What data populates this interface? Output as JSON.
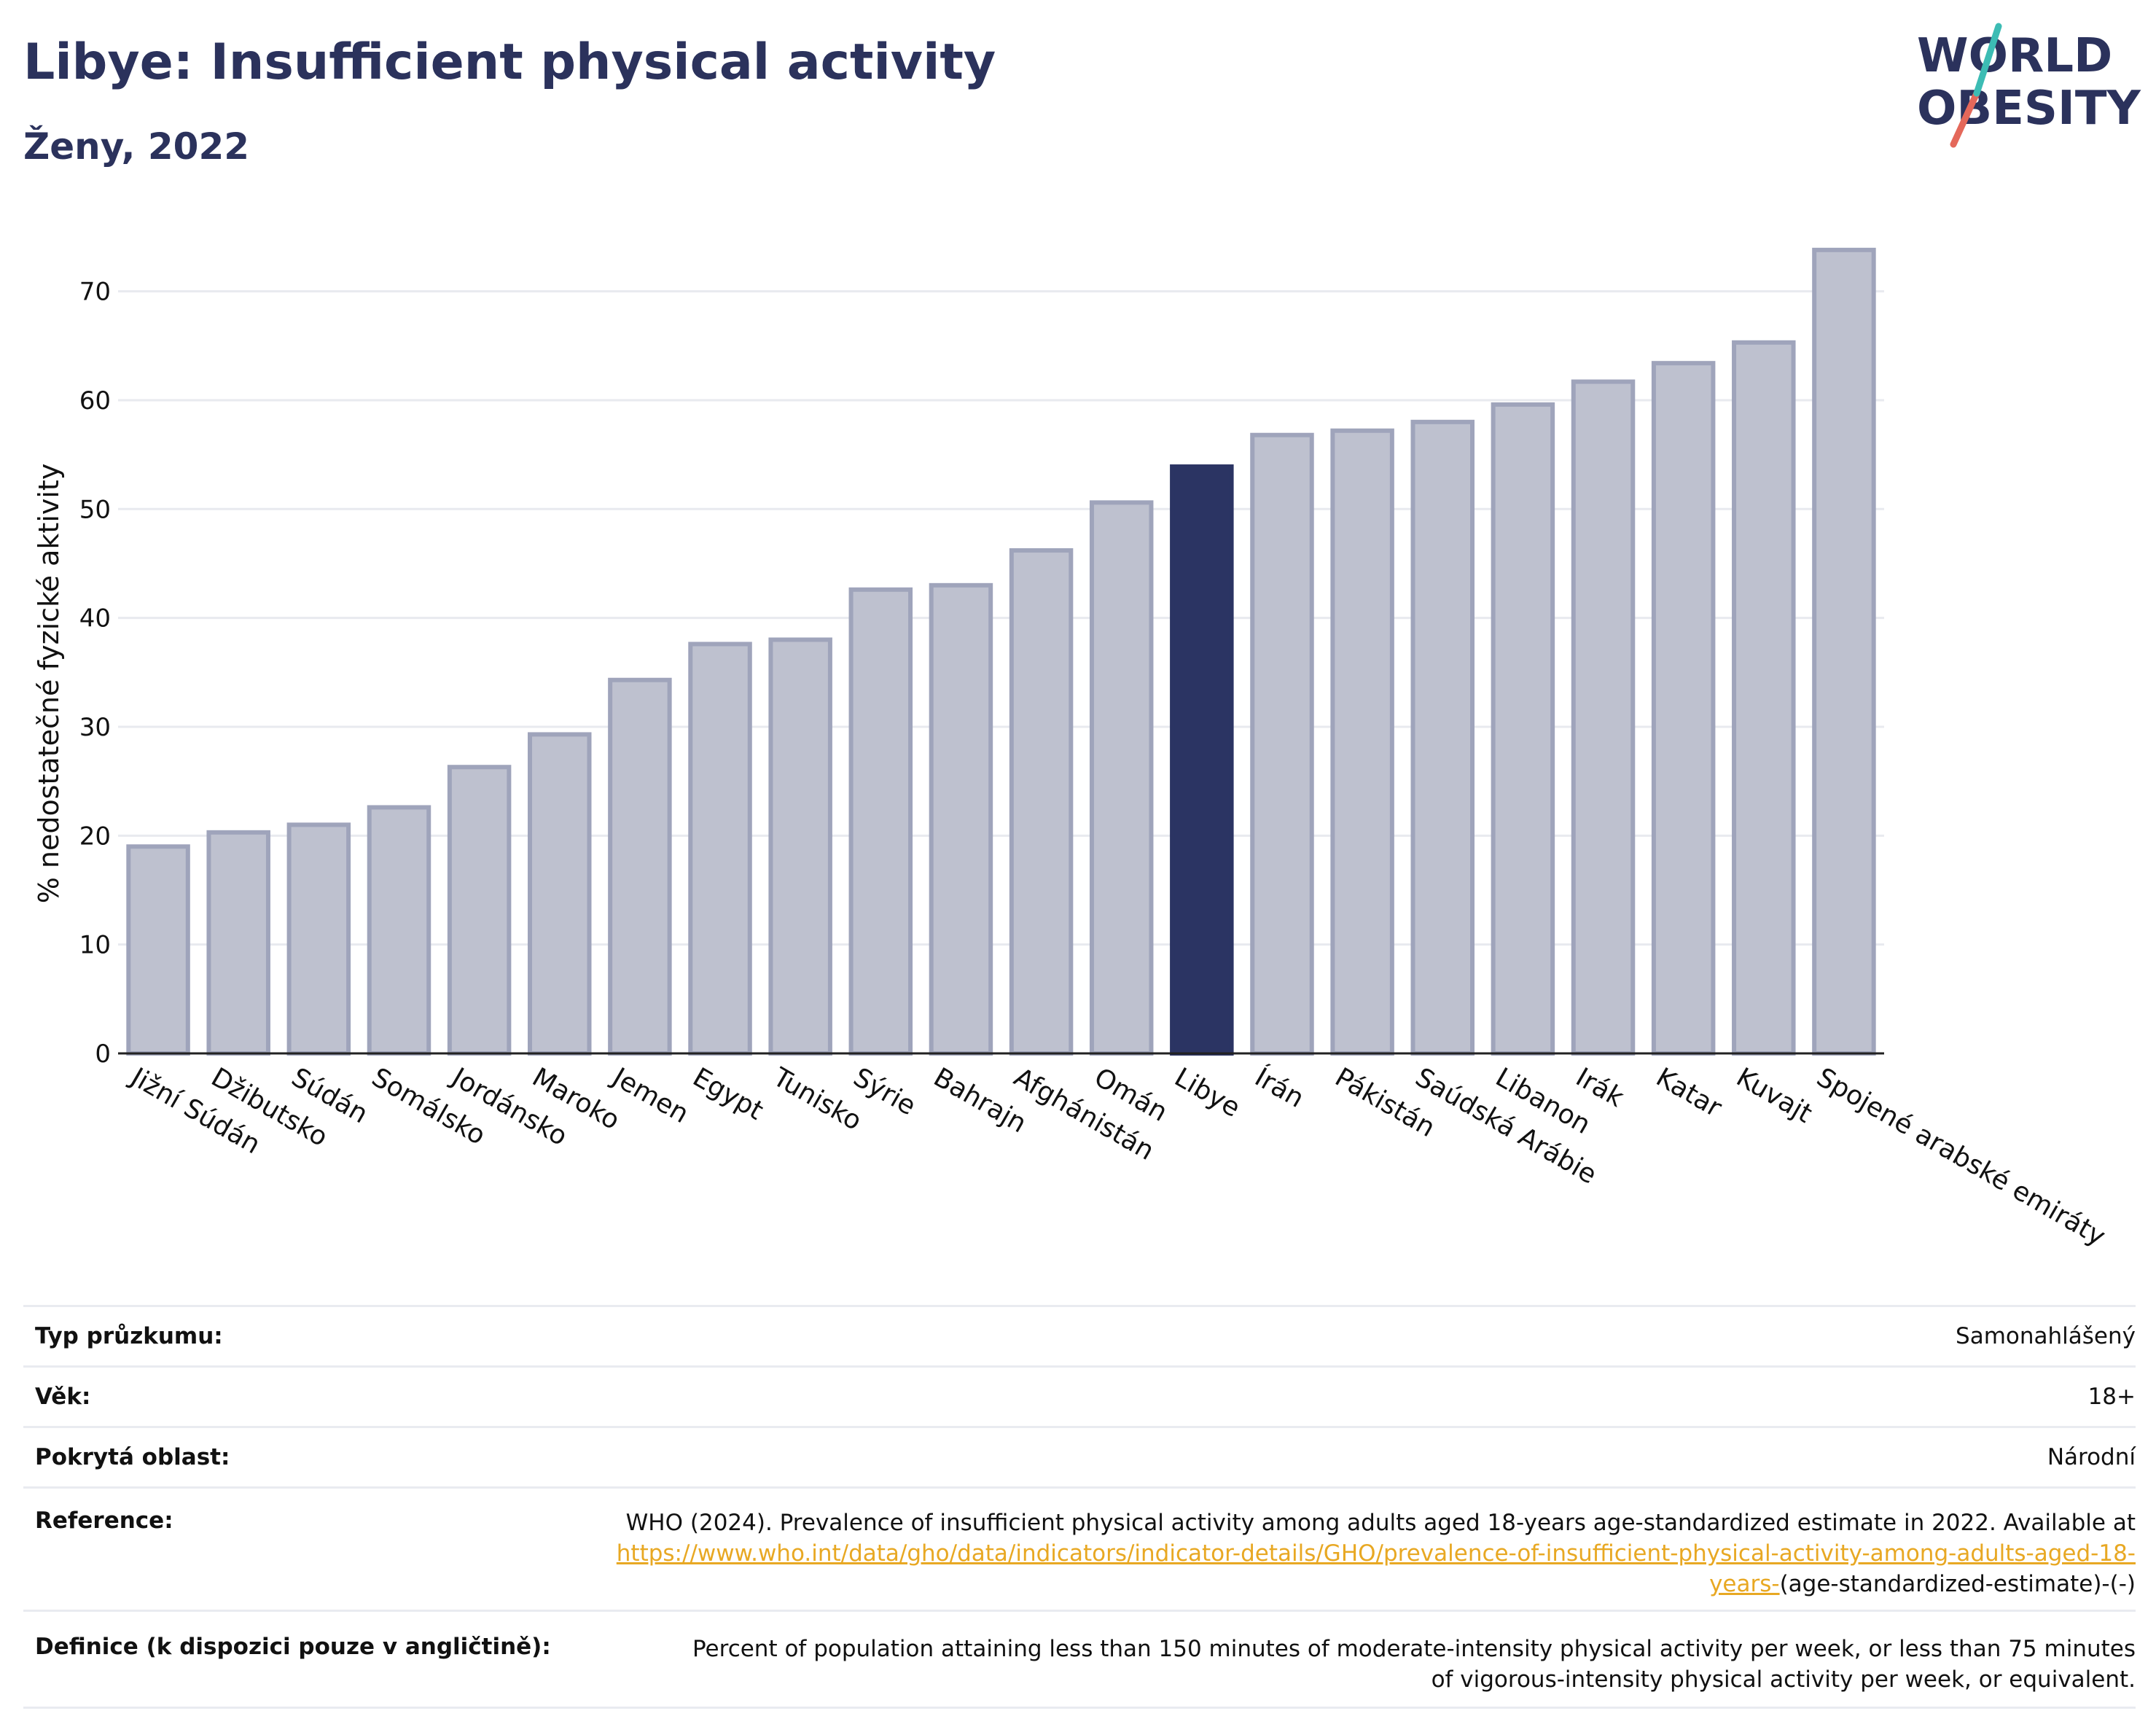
{
  "header": {
    "title": "Libye: Insufficient physical activity",
    "subtitle": "Ženy, 2022"
  },
  "logo": {
    "line1": "WORLD",
    "line2": "OBESITY"
  },
  "colors": {
    "highlight": "#2b3463",
    "bar_fill": "#bec1cf",
    "bar_stroke": "#9fa4bb",
    "grid": "#e8eaef",
    "link": "#e8a823"
  },
  "chart_data": {
    "type": "bar",
    "ylabel": "% nedostatečné fyzické aktivity",
    "ylim": [
      0,
      76
    ],
    "yticks": [
      0,
      10,
      20,
      30,
      40,
      50,
      60,
      70
    ],
    "grid": true,
    "highlight": "Libye",
    "categories": [
      "Jižní Súdán",
      "Džibutsko",
      "Súdán",
      "Somálsko",
      "Jordánsko",
      "Maroko",
      "Jemen",
      "Egypt",
      "Tunisko",
      "Sýrie",
      "Bahrajn",
      "Afghánistán",
      "Omán",
      "Libye",
      "Írán",
      "Pákistán",
      "Saúdská Arábie",
      "Libanon",
      "Irák",
      "Katar",
      "Kuvajt",
      "Spojené arabské emiráty"
    ],
    "values": [
      19.0,
      20.3,
      21.0,
      22.6,
      26.3,
      29.3,
      34.3,
      37.6,
      38.0,
      42.6,
      43.0,
      46.2,
      50.6,
      53.9,
      56.8,
      57.2,
      58.0,
      59.6,
      61.7,
      63.4,
      65.3,
      73.8
    ]
  },
  "info": {
    "survey_label": "Typ průzkumu:",
    "survey_value": "Samonahlášený",
    "age_label": "Věk:",
    "age_value": "18+",
    "area_label": "Pokrytá oblast:",
    "area_value": "Národní",
    "reference_label": "Reference:",
    "reference_text": "WHO (2024). Prevalence of insufficient physical activity among adults aged 18-years age-standardized estimate in 2022. Available at",
    "reference_link": "https://www.who.int/data/gho/data/indicators/indicator-details/GHO/prevalence-of-insufficient-physical-activity-among-adults-aged-18-years-",
    "reference_suffix": "(age-standardized-estimate)-(-)",
    "definition_label": "Definice (k dispozici pouze v angličtině):",
    "definition_text": "Percent of population attaining less than 150 minutes of moderate-intensity physical activity per week, or less than 75 minutes of vigorous-intensity physical activity per week, or equivalent."
  }
}
